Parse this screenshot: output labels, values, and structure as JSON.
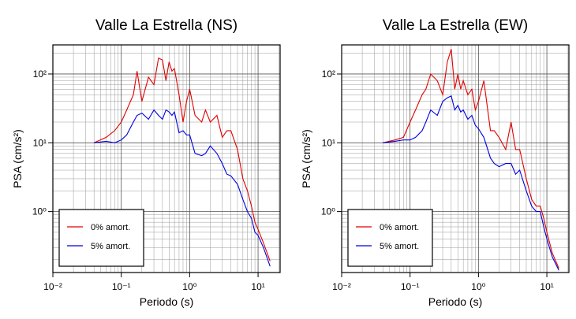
{
  "chart_data": [
    {
      "type": "line",
      "title": "Valle La Estrella (NS)",
      "x_label": "Periodo (s)",
      "y_label": "PSA (cm/s²)",
      "log_x": true,
      "log_y": true,
      "grid": true,
      "legend": "lower left",
      "xlim": [
        0.01,
        21
      ],
      "ylim": [
        0.13,
        265
      ],
      "xticks": [
        {
          "value": 0.01,
          "label": "10⁻²"
        },
        {
          "value": 0.1,
          "label": "10⁻¹"
        },
        {
          "value": 1,
          "label": "10⁰"
        },
        {
          "value": 10,
          "label": "10¹"
        }
      ],
      "yticks": [
        {
          "value": 1,
          "label": "10⁰"
        },
        {
          "value": 10,
          "label": "10¹"
        },
        {
          "value": 100,
          "label": "10²"
        }
      ],
      "x": [
        0.04,
        0.06,
        0.08,
        0.1,
        0.12,
        0.15,
        0.17,
        0.2,
        0.25,
        0.3,
        0.35,
        0.4,
        0.45,
        0.5,
        0.55,
        0.6,
        0.7,
        0.8,
        0.9,
        1.0,
        1.2,
        1.5,
        1.7,
        2,
        2.5,
        3,
        3.5,
        4,
        5,
        6,
        7,
        8,
        9,
        10,
        12,
        15
      ],
      "series": [
        {
          "name": "0% amort.",
          "color": "#e00000",
          "values": [
            10,
            12,
            15,
            20,
            30,
            50,
            110,
            40,
            90,
            70,
            170,
            160,
            80,
            150,
            110,
            120,
            50,
            20,
            40,
            60,
            25,
            20,
            30,
            20,
            25,
            12,
            15,
            15,
            8,
            3,
            2,
            1.2,
            0.7,
            0.55,
            0.35,
            0.19
          ]
        },
        {
          "name": "5% amort.",
          "color": "#0000e0",
          "values": [
            10,
            10.5,
            10,
            11,
            13,
            20,
            25,
            27,
            22,
            30,
            25,
            22,
            30,
            28,
            25,
            28,
            14,
            15,
            13,
            13,
            7,
            6.5,
            7,
            9,
            7,
            5,
            3.5,
            3.3,
            2.5,
            1.5,
            1,
            0.8,
            0.5,
            0.45,
            0.3,
            0.16
          ]
        }
      ]
    },
    {
      "type": "line",
      "title": "Valle La Estrella (EW)",
      "x_label": "Periodo (s)",
      "y_label": "PSA (cm/s²)",
      "log_x": true,
      "log_y": true,
      "grid": true,
      "legend": "lower left",
      "xlim": [
        0.01,
        21
      ],
      "ylim": [
        0.13,
        265
      ],
      "xticks": [
        {
          "value": 0.01,
          "label": "10⁻²"
        },
        {
          "value": 0.1,
          "label": "10⁻¹"
        },
        {
          "value": 1,
          "label": "10⁰"
        },
        {
          "value": 10,
          "label": "10¹"
        }
      ],
      "yticks": [
        {
          "value": 1,
          "label": "10⁰"
        },
        {
          "value": 10,
          "label": "10¹"
        },
        {
          "value": 100,
          "label": "10²"
        }
      ],
      "x": [
        0.04,
        0.06,
        0.08,
        0.1,
        0.12,
        0.15,
        0.17,
        0.2,
        0.25,
        0.3,
        0.35,
        0.4,
        0.45,
        0.5,
        0.55,
        0.6,
        0.7,
        0.8,
        0.9,
        1.0,
        1.2,
        1.5,
        1.7,
        2,
        2.5,
        3,
        3.5,
        4,
        5,
        6,
        7,
        8,
        9,
        10,
        12,
        15
      ],
      "series": [
        {
          "name": "0% amort.",
          "color": "#e00000",
          "values": [
            10,
            11,
            12,
            20,
            30,
            50,
            60,
            100,
            80,
            50,
            150,
            230,
            60,
            100,
            60,
            80,
            50,
            60,
            30,
            40,
            80,
            15,
            15,
            12,
            8,
            20,
            8,
            8,
            3,
            1.5,
            1.2,
            1.2,
            0.8,
            0.5,
            0.25,
            0.15
          ]
        },
        {
          "name": "5% amort.",
          "color": "#0000e0",
          "values": [
            10,
            10.5,
            11,
            11,
            12,
            15,
            20,
            30,
            25,
            40,
            45,
            48,
            30,
            35,
            28,
            30,
            22,
            25,
            18,
            16,
            12,
            6,
            5,
            4.5,
            5,
            5,
            3.5,
            4,
            2,
            1.2,
            1,
            1,
            0.6,
            0.4,
            0.22,
            0.14
          ]
        }
      ]
    }
  ]
}
